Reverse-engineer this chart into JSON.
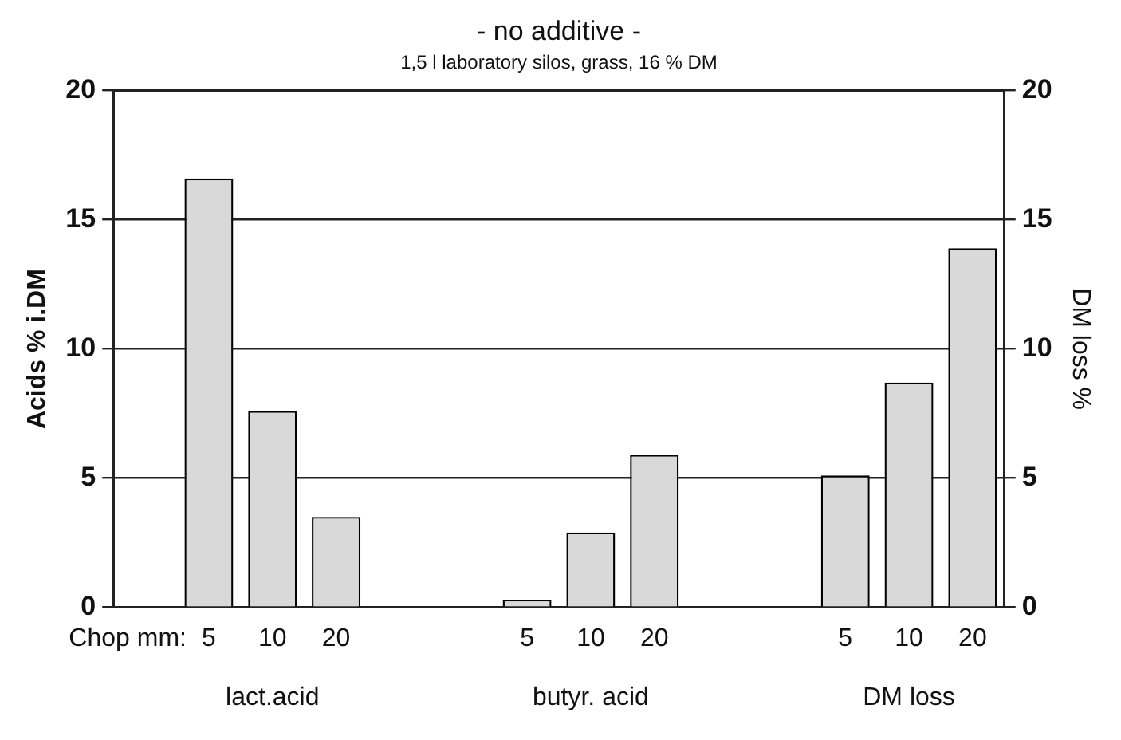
{
  "chart_data": {
    "type": "bar",
    "title": "- no additive -",
    "subtitle": "1,5 l laboratory silos, grass, 16 % DM",
    "ylabel": "Acids % i.DM",
    "y2label": "DM loss %",
    "categories": [
      null,
      "5",
      "10",
      "20",
      null,
      null,
      "5",
      "10",
      "20",
      null,
      null,
      "5",
      "10",
      "20"
    ],
    "series": [
      {
        "color": "#d9d9d9",
        "values": [
          null,
          16.6,
          7.6,
          3.5,
          null,
          null,
          0.3,
          2.9,
          5.9,
          null,
          null,
          null,
          null,
          null
        ]
      },
      {
        "color": "#d9d9d9",
        "axis": "y2",
        "values": [
          null,
          null,
          null,
          null,
          null,
          null,
          null,
          null,
          null,
          null,
          null,
          5.1,
          8.7,
          13.9
        ]
      }
    ],
    "ylim": [
      0,
      20
    ],
    "yticks": [
      0,
      5,
      10,
      15,
      20
    ],
    "y2lim": [
      0,
      20
    ],
    "y2ticks": [
      0,
      5,
      10,
      15,
      20
    ],
    "grid": "y",
    "legend": false,
    "annotations": [
      "Chop mm:",
      "lact.acid",
      "butyr. acid",
      "DM loss"
    ]
  }
}
